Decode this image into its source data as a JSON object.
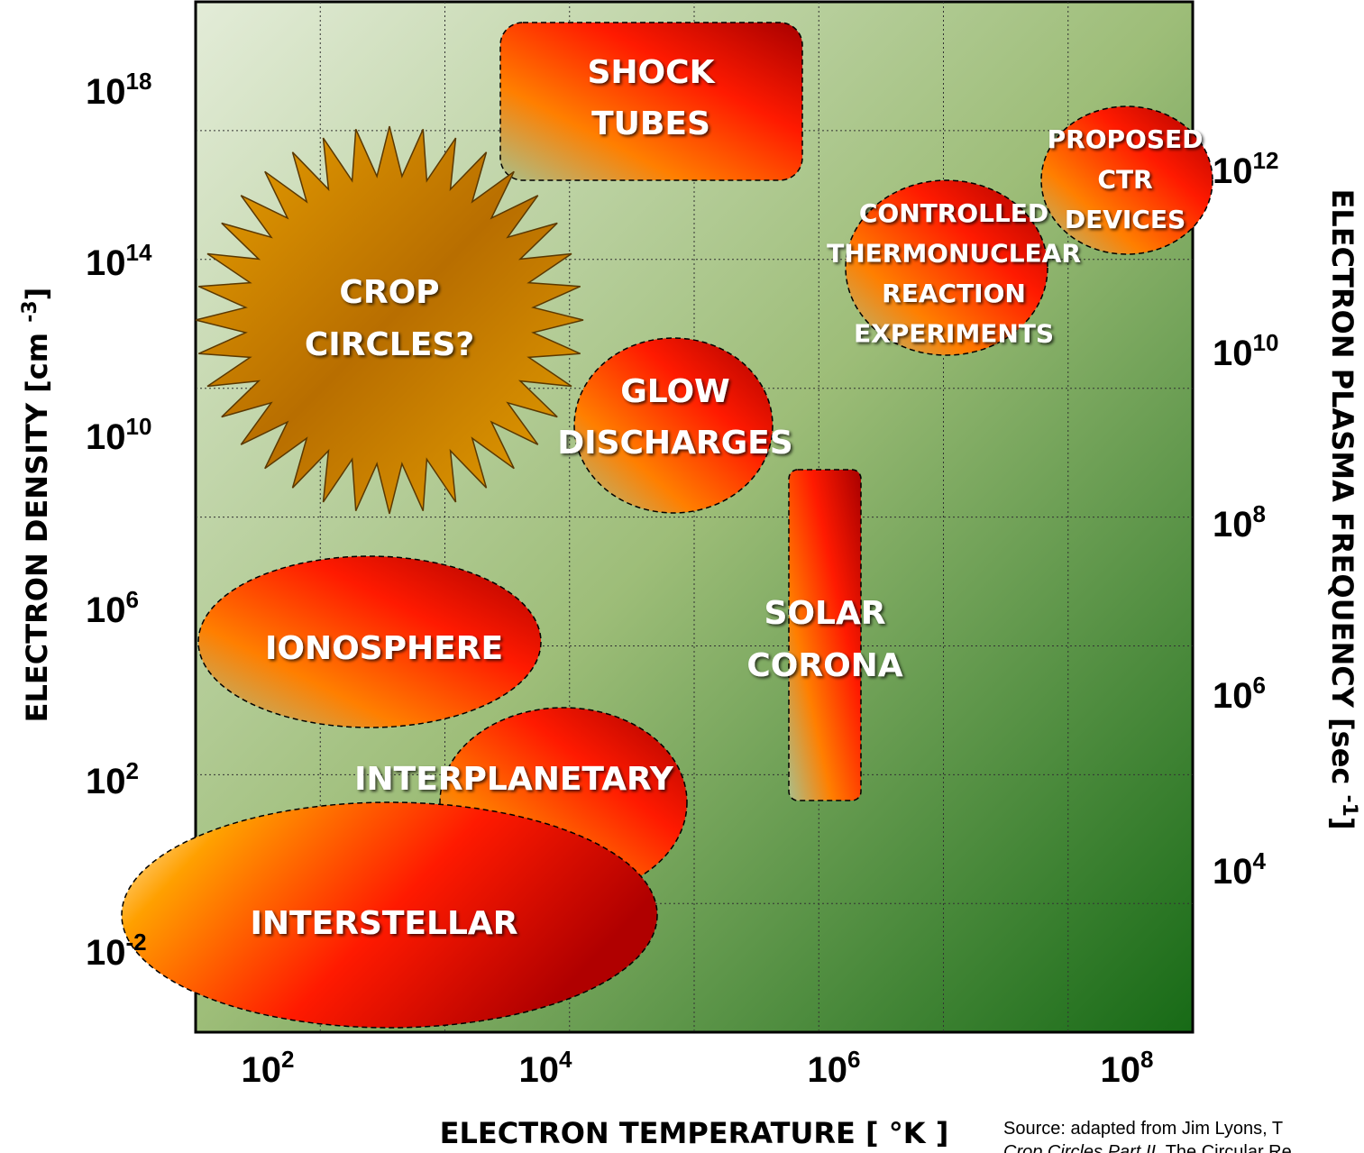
{
  "x_axis": {
    "label": "ELECTRON TEMPERATURE [ °K ]",
    "ticks": [
      {
        "base": "10",
        "exp": "2"
      },
      {
        "base": "10",
        "exp": "4"
      },
      {
        "base": "10",
        "exp": "6"
      },
      {
        "base": "10",
        "exp": "8"
      }
    ]
  },
  "y_axis": {
    "label": "ELECTRON DENSITY [cm ",
    "label_sup": "-3",
    "label_end": "]",
    "ticks": [
      {
        "base": "10",
        "exp": "18"
      },
      {
        "base": "10",
        "exp": "14"
      },
      {
        "base": "10",
        "exp": "10"
      },
      {
        "base": "10",
        "exp": "6"
      },
      {
        "base": "10",
        "exp": "2"
      },
      {
        "base": "10",
        "exp": "-2"
      }
    ]
  },
  "y2_axis": {
    "label": "ELECTRON PLASMA FREQUENCY [sec ",
    "label_sup": "-1",
    "label_end": "]",
    "ticks": [
      {
        "base": "10",
        "exp": "12"
      },
      {
        "base": "10",
        "exp": "10"
      },
      {
        "base": "10",
        "exp": "8"
      },
      {
        "base": "10",
        "exp": "6"
      },
      {
        "base": "10",
        "exp": "4"
      }
    ]
  },
  "regions": [
    {
      "lines": [
        "SHOCK",
        "TUBES"
      ]
    },
    {
      "lines": [
        "CROP",
        "CIRCLES?"
      ]
    },
    {
      "lines": [
        "GLOW",
        "DISCHARGES"
      ]
    },
    {
      "lines": [
        "SOLAR",
        "CORONA"
      ]
    },
    {
      "lines": [
        "IONOSPHERE"
      ]
    },
    {
      "lines": [
        "INTERPLANETARY"
      ]
    },
    {
      "lines": [
        "INTERSTELLAR"
      ]
    },
    {
      "lines": [
        "CONTROLLED",
        "THERMONUCLEAR",
        "REACTION",
        "EXPERIMENTS"
      ]
    },
    {
      "lines": [
        "PROPOSED",
        "CTR",
        "DEVICES"
      ]
    }
  ],
  "source": {
    "line1": "Source: adapted from Jim Lyons, T",
    "line2_italic": "Crop Circles Part II",
    "line2_rest": ". The Circular Re"
  }
}
